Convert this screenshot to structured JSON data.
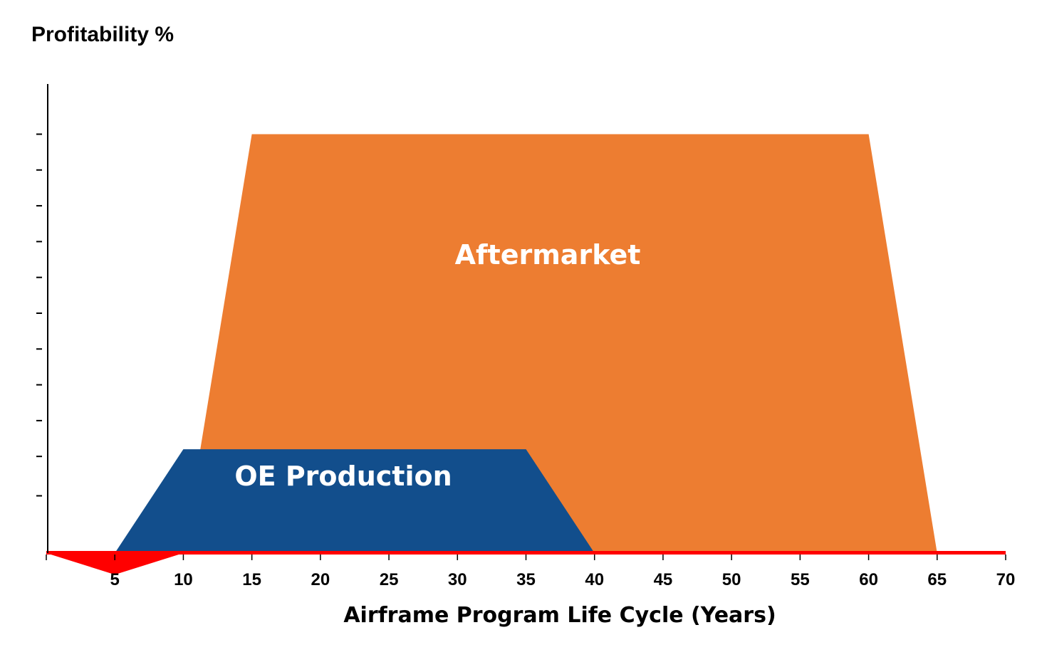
{
  "chart_data": {
    "type": "area",
    "title": "Profitability %",
    "xlabel": "Airframe Program Life Cycle (Years)",
    "ylabel": "",
    "xlim": [
      0,
      70
    ],
    "ylim": [
      -2.5,
      11.6
    ],
    "x_ticks": [
      5,
      10,
      15,
      20,
      25,
      30,
      35,
      40,
      45,
      50,
      55,
      60,
      65,
      70
    ],
    "y_ticks": [
      1.6,
      2.7,
      3.7,
      4.7,
      5.7,
      6.7,
      7.7,
      8.7,
      9.7,
      10.7,
      11.7
    ],
    "y_tick_labels_visible": false,
    "grid": false,
    "colors": {
      "aftermarket": "#ED7D31",
      "oe_production": "#124E8C",
      "loss": "#FF0000",
      "axis": "#000000"
    },
    "series": [
      {
        "name": "Aftermarket",
        "label": "Aftermarket",
        "color": "#ED7D31",
        "x": [
          10,
          15,
          60,
          65
        ],
        "y": [
          0,
          11.7,
          11.7,
          0
        ]
      },
      {
        "name": "OE Production",
        "label": "OE Production",
        "color": "#124E8C",
        "x": [
          5,
          10,
          35,
          40
        ],
        "y": [
          0,
          2.9,
          2.9,
          0
        ]
      },
      {
        "name": "Loss",
        "color": "#FF0000",
        "x": [
          0,
          5,
          10,
          65,
          70
        ],
        "y": [
          0,
          -0.6,
          0,
          0,
          0
        ]
      }
    ],
    "annotations": [
      {
        "text": "Aftermarket",
        "series": "Aftermarket"
      },
      {
        "text": "OE Production",
        "series": "OE Production"
      }
    ]
  }
}
